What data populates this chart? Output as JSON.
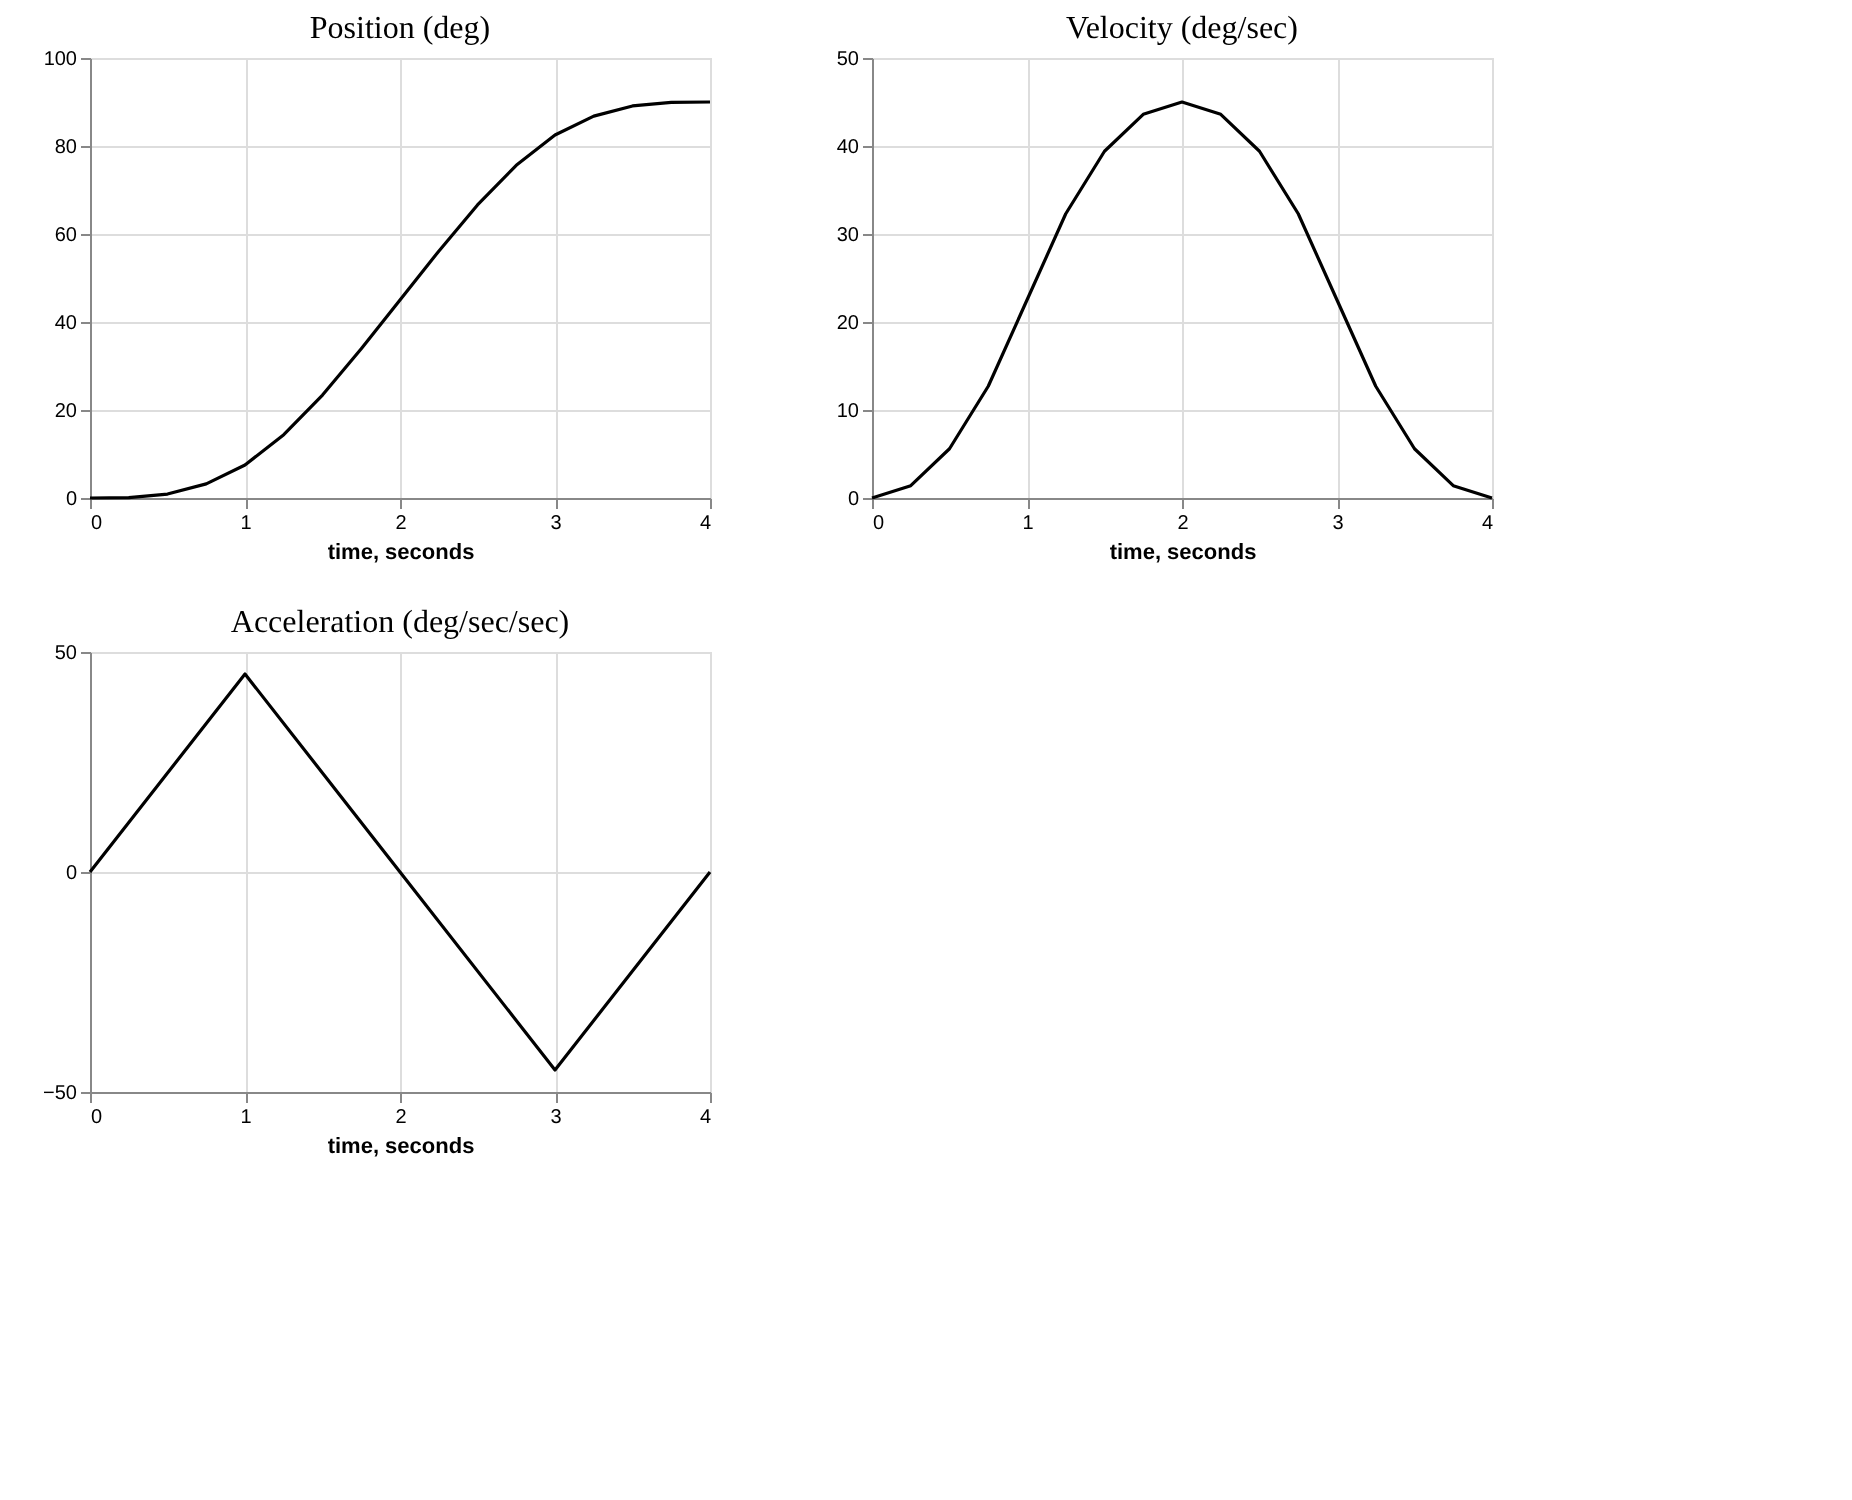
{
  "chart_data": [
    {
      "type": "line",
      "title": "Position (deg)",
      "xlabel": "time, seconds",
      "x": [
        0,
        0.25,
        0.5,
        0.75,
        1,
        1.25,
        1.5,
        1.75,
        2,
        2.25,
        2.5,
        2.75,
        3,
        3.25,
        3.5,
        3.75,
        4
      ],
      "series": [
        {
          "color": "#000000",
          "values": [
            0,
            0.1,
            0.9,
            3.2,
            7.5,
            14.4,
            23.4,
            33.9,
            45,
            56.1,
            66.6,
            75.6,
            82.5,
            86.8,
            89.1,
            89.9,
            90
          ]
        }
      ],
      "xlim": [
        0,
        4
      ],
      "xticks": [
        0,
        1,
        2,
        3,
        4
      ],
      "ylim": [
        0,
        100
      ],
      "yticks": [
        0,
        20,
        40,
        60,
        80,
        100
      ],
      "grid": true,
      "legend": false,
      "marker": "none",
      "line_style": "solid"
    },
    {
      "type": "line",
      "title": "Velocity (deg/sec)",
      "xlabel": "time, seconds",
      "x": [
        0,
        0.25,
        0.5,
        0.75,
        1,
        1.25,
        1.5,
        1.75,
        2,
        2.25,
        2.5,
        2.75,
        3,
        3.25,
        3.5,
        3.75,
        4
      ],
      "series": [
        {
          "color": "#000000",
          "values": [
            0,
            1.4,
            5.6,
            12.7,
            22.5,
            32.3,
            39.4,
            43.6,
            45,
            43.6,
            39.4,
            32.3,
            22.5,
            12.7,
            5.6,
            1.4,
            0
          ]
        }
      ],
      "xlim": [
        0,
        4
      ],
      "xticks": [
        0,
        1,
        2,
        3,
        4
      ],
      "ylim": [
        0,
        50
      ],
      "yticks": [
        0,
        10,
        20,
        30,
        40,
        50
      ],
      "grid": true,
      "legend": false,
      "marker": "none",
      "line_style": "solid"
    },
    {
      "type": "line",
      "title": "Acceleration (deg/sec/sec)",
      "xlabel": "time, seconds",
      "x": [
        0,
        1,
        2,
        3,
        4
      ],
      "series": [
        {
          "color": "#000000",
          "values": [
            0,
            45,
            0,
            -45,
            0
          ]
        }
      ],
      "xlim": [
        0,
        4
      ],
      "xticks": [
        0,
        1,
        2,
        3,
        4
      ],
      "ylim": [
        -50,
        50
      ],
      "yticks": [
        -50,
        0,
        50
      ],
      "grid": true,
      "legend": false,
      "marker": "none",
      "line_style": "solid"
    }
  ]
}
